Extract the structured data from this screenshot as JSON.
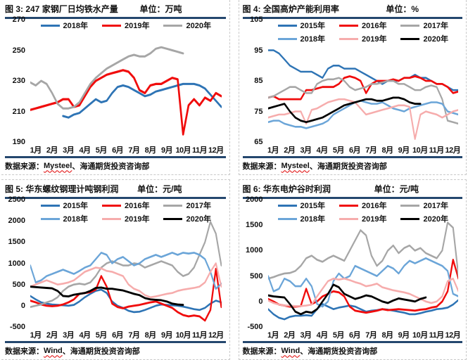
{
  "chart_data": [
    {
      "id": "fig3",
      "type": "line",
      "title": "图 3: 247 家钢厂日均铁水产量",
      "unit": "单位：万吨",
      "source_label": "数据来源：",
      "source_name": "Mysteel",
      "source_rest": "、海通期货投资咨询部",
      "ylim": [
        190,
        270
      ],
      "y_ticks": [
        270,
        250,
        230,
        210,
        190
      ],
      "x_labels": [
        "1月",
        "2月",
        "3月",
        "4月",
        "5月",
        "6月",
        "7月",
        "8月",
        "9月",
        "10月",
        "11月",
        "12月"
      ],
      "legend_rows": 1,
      "grid": false,
      "legend_position": "top",
      "series": [
        {
          "name": "2018年",
          "color": "#2E74B5",
          "width": 2.6,
          "values": [
            null,
            null,
            null,
            null,
            null,
            null,
            207,
            206,
            208,
            209,
            212,
            215,
            218,
            216,
            217,
            222,
            226,
            227,
            226,
            224,
            222,
            220,
            221,
            223,
            224,
            225,
            226,
            227,
            228,
            228,
            228,
            227,
            225,
            221,
            217,
            213
          ]
        },
        {
          "name": "2019年",
          "color": "#F00C0C",
          "width": 2.8,
          "values": [
            211,
            212,
            213,
            214,
            215,
            216,
            218,
            218,
            213,
            214,
            220,
            226,
            230,
            232,
            234,
            235,
            236,
            237,
            236,
            232,
            224,
            222,
            227,
            228,
            228,
            230,
            232,
            231,
            195,
            214,
            218,
            214,
            219,
            217,
            222,
            220
          ]
        },
        {
          "name": "2020年",
          "color": "#A6A6A6",
          "width": 2.6,
          "values": [
            229,
            227,
            230,
            228,
            222,
            215,
            212,
            212,
            213,
            216,
            222,
            228,
            232,
            235,
            238,
            240,
            242,
            244,
            246,
            247,
            246,
            246,
            248,
            251,
            252,
            251,
            250,
            249,
            248,
            null,
            null,
            null,
            null,
            null,
            null,
            null
          ]
        }
      ]
    },
    {
      "id": "fig4",
      "type": "line",
      "title": "图 4: 全国高炉产能利用率",
      "unit": "单位：%",
      "source_label": "数据来源：",
      "source_name": "Mysteel",
      "source_rest": "、海通期货投资咨询部",
      "ylim": [
        65,
        105
      ],
      "y_ticks": [
        105,
        95,
        85,
        75,
        65
      ],
      "x_labels": [
        "1月",
        "2月",
        "3月",
        "4月",
        "5月",
        "6月",
        "7月",
        "8月",
        "9月",
        "10月",
        "11月",
        "12月"
      ],
      "legend_rows": 2,
      "grid": false,
      "legend_position": "top",
      "series": [
        {
          "name": "2015年",
          "color": "#2E74B5",
          "width": 2.2,
          "values": [
            95,
            95,
            94,
            92,
            90,
            89,
            88,
            88,
            88,
            87,
            86,
            89,
            90,
            90,
            89,
            89,
            89,
            88,
            87,
            86,
            85,
            84,
            85,
            85,
            85,
            86,
            86,
            87,
            86,
            86,
            85,
            84,
            84,
            83,
            82,
            82
          ]
        },
        {
          "name": "2016年",
          "color": "#F00C0C",
          "width": 2.4,
          "values": [
            79.5,
            80,
            79,
            79,
            79,
            79,
            79,
            82,
            82,
            82.5,
            83,
            83,
            83,
            84,
            86,
            86.5,
            86,
            85,
            81,
            84,
            85,
            85,
            85,
            85.5,
            85,
            86,
            86,
            86.5,
            86,
            85,
            85,
            84,
            84,
            83,
            81,
            81.5
          ]
        },
        {
          "name": "2017年",
          "color": "#A6A6A6",
          "width": 2.2,
          "values": [
            79.5,
            80,
            81,
            82,
            83,
            83,
            82,
            81,
            81,
            84,
            85,
            85.5,
            85.5,
            86,
            85,
            83,
            82,
            82.5,
            83,
            84,
            84,
            84.5,
            85,
            85,
            84,
            84,
            83,
            82,
            82,
            83,
            83.5,
            83,
            79,
            72,
            71.5,
            71
          ]
        },
        {
          "name": "2018年",
          "color": "#6BA5D8",
          "width": 2.2,
          "values": [
            71.5,
            72,
            72,
            71,
            70.5,
            70,
            70,
            69.5,
            70,
            70.5,
            71,
            72,
            74,
            75,
            76,
            77,
            78,
            78.5,
            78,
            77.5,
            77.5,
            78,
            77,
            76,
            75.5,
            75,
            76,
            76.5,
            77,
            77.5,
            78,
            78,
            77.5,
            75,
            74.5,
            74
          ]
        },
        {
          "name": "2019年",
          "color": "#F6ACAC",
          "width": 2.2,
          "values": [
            73,
            73.5,
            74,
            74,
            74.5,
            75,
            75,
            71,
            75.5,
            76,
            77,
            78,
            78.5,
            79,
            79,
            78.5,
            78,
            76,
            74,
            74.5,
            75,
            75.5,
            76,
            76.5,
            77,
            77,
            76.5,
            66,
            74,
            75,
            74.5,
            74,
            73,
            74,
            75,
            75.5
          ]
        },
        {
          "name": "2020年",
          "color": "#000000",
          "width": 2.4,
          "values": [
            76,
            76.5,
            77,
            77.5,
            75,
            73,
            72,
            71.5,
            72,
            72.5,
            73,
            74,
            75,
            76,
            77,
            77.5,
            78,
            78.5,
            79,
            79,
            78.5,
            78.5,
            79,
            79.5,
            79.5,
            79,
            78,
            77.5,
            77.5,
            null,
            null,
            null,
            null,
            null,
            null,
            null
          ]
        }
      ]
    },
    {
      "id": "fig5",
      "type": "line",
      "title": "图 5: 华东螺纹钢理计吨钢利润",
      "unit": "单位：元/吨",
      "source_label": "数据来源：",
      "source_name": "Wind",
      "source_rest": "、海通期货投资咨询部",
      "ylim": [
        -500,
        2500
      ],
      "y_ticks": [
        2500,
        2000,
        1500,
        1000,
        500,
        0,
        -500
      ],
      "x_labels": [
        "1月",
        "2月",
        "3月",
        "4月",
        "5月",
        "6月",
        "7月",
        "8月",
        "9月",
        "10月",
        "11月",
        "12月"
      ],
      "legend_rows": 2,
      "grid": false,
      "legend_position": "top",
      "series": [
        {
          "name": "2015年",
          "color": "#2E74B5",
          "width": 2.2,
          "values": [
            230,
            150,
            80,
            50,
            30,
            20,
            10,
            0,
            20,
            100,
            200,
            280,
            350,
            380,
            300,
            100,
            0,
            -50,
            -120,
            -150,
            -140,
            -100,
            -50,
            0,
            30,
            20,
            10,
            0,
            -20,
            -50,
            -80,
            -100,
            -50,
            50,
            120,
            80
          ]
        },
        {
          "name": "2016年",
          "color": "#F00C0C",
          "width": 2.4,
          "values": [
            120,
            80,
            30,
            0,
            -10,
            0,
            30,
            80,
            150,
            280,
            300,
            320,
            380,
            700,
            450,
            50,
            -30,
            -60,
            -20,
            0,
            20,
            50,
            80,
            100,
            50,
            0,
            -50,
            -150,
            -220,
            -250,
            -230,
            -250,
            -350,
            -100,
            870,
            -30
          ]
        },
        {
          "name": "2017年",
          "color": "#A6A6A6",
          "width": 2.2,
          "values": [
            -30,
            0,
            30,
            80,
            120,
            200,
            350,
            450,
            500,
            520,
            500,
            550,
            700,
            900,
            1000,
            1050,
            1000,
            950,
            950,
            1000,
            980,
            900,
            950,
            1000,
            1050,
            1000,
            950,
            800,
            700,
            750,
            900,
            1200,
            1500,
            1980,
            1700,
            950
          ]
        },
        {
          "name": "2018年",
          "color": "#6BA5D8",
          "width": 2.2,
          "values": [
            950,
            550,
            600,
            700,
            750,
            800,
            850,
            800,
            750,
            820,
            900,
            950,
            1100,
            1250,
            1200,
            1000,
            1100,
            1150,
            1050,
            950,
            1000,
            1100,
            1150,
            1200,
            1150,
            1200,
            1250,
            1200,
            1250,
            1230,
            1250,
            1200,
            1100,
            800,
            400,
            520
          ]
        },
        {
          "name": "2019年",
          "color": "#F6ACAC",
          "width": 2.2,
          "values": [
            450,
            500,
            550,
            600,
            550,
            500,
            520,
            550,
            600,
            700,
            800,
            850,
            900,
            880,
            820,
            800,
            750,
            700,
            500,
            400,
            350,
            250,
            200,
            220,
            250,
            280,
            300,
            350,
            380,
            400,
            420,
            450,
            550,
            800,
            1000,
            450
          ]
        },
        {
          "name": "2020年",
          "color": "#000000",
          "width": 2.4,
          "values": [
            450,
            440,
            430,
            420,
            410,
            350,
            230,
            220,
            260,
            280,
            300,
            350,
            420,
            430,
            400,
            400,
            380,
            360,
            320,
            280,
            250,
            180,
            150,
            140,
            130,
            100,
            50,
            30,
            20,
            null,
            null,
            null,
            null,
            null,
            null,
            null
          ]
        }
      ]
    },
    {
      "id": "fig6",
      "type": "line",
      "title": "图 6: 华东电炉谷时利润",
      "unit": "单位：元/吨",
      "source_label": "数据来源：",
      "source_name": "Wind",
      "source_rest": "、海通期货投资咨询部",
      "ylim": [
        -500,
        2000
      ],
      "y_ticks": [
        2000,
        1500,
        1000,
        500,
        0,
        -500
      ],
      "x_labels": [
        "1月",
        "2月",
        "3月",
        "4月",
        "5月",
        "6月",
        "7月",
        "8月",
        "9月",
        "10月",
        "11月",
        "12月"
      ],
      "legend_rows": 2,
      "grid": false,
      "legend_position": "top",
      "series": [
        {
          "name": "2015年",
          "color": "#2E74B5",
          "width": 2.2,
          "values": [
            -150,
            -250,
            -320,
            -350,
            -300,
            -280,
            -280,
            -270,
            -280,
            -150,
            -50,
            -100,
            -150,
            -120,
            -100,
            -80,
            -100,
            -150,
            -200,
            -180,
            -170,
            -150,
            -160,
            -180,
            -200,
            -220,
            -250,
            -250,
            -230,
            -200,
            -180,
            -150,
            -140,
            -120,
            -60,
            30
          ]
        },
        {
          "name": "2016年",
          "color": "#F00C0C",
          "width": 2.4,
          "values": [
            50,
            0,
            -60,
            -80,
            -100,
            -100,
            -90,
            250,
            -50,
            0,
            100,
            150,
            200,
            180,
            100,
            -100,
            -180,
            -200,
            -220,
            -200,
            -180,
            -150,
            -170,
            -160,
            -150,
            -160,
            -170,
            -180,
            -160,
            -150,
            -120,
            -100,
            0,
            200,
            820,
            450
          ]
        },
        {
          "name": "2017年",
          "color": "#A6A6A6",
          "width": 2.2,
          "values": [
            450,
            480,
            520,
            550,
            560,
            600,
            700,
            850,
            900,
            820,
            780,
            850,
            900,
            850,
            800,
            1000,
            1200,
            1400,
            1300,
            900,
            700,
            800,
            1000,
            1100,
            950,
            1050,
            1100,
            1000,
            1050,
            950,
            900,
            850,
            1000,
            1550,
            1450,
            500
          ]
        },
        {
          "name": "2018年",
          "color": "#6BA5D8",
          "width": 2.2,
          "values": [
            500,
            200,
            250,
            450,
            400,
            300,
            300,
            450,
            300,
            -50,
            -100,
            0,
            400,
            550,
            450,
            500,
            700,
            650,
            600,
            550,
            500,
            600,
            700,
            650,
            550,
            700,
            800,
            750,
            800,
            850,
            800,
            750,
            700,
            600,
            150,
            100
          ]
        },
        {
          "name": "2019年",
          "color": "#F6ACAC",
          "width": 2.2,
          "values": [
            20,
            -30,
            -60,
            -80,
            -80,
            -90,
            -90,
            -80,
            -60,
            100,
            250,
            400,
            450,
            430,
            450,
            420,
            380,
            350,
            300,
            320,
            350,
            280,
            250,
            220,
            200,
            180,
            150,
            100,
            50,
            0,
            -30,
            0,
            100,
            400,
            450,
            200
          ]
        },
        {
          "name": "2020年",
          "color": "#000000",
          "width": 2.4,
          "values": [
            120,
            100,
            90,
            80,
            -50,
            -200,
            -250,
            -200,
            -220,
            -150,
            0,
            150,
            330,
            280,
            150,
            100,
            50,
            80,
            120,
            100,
            50,
            0,
            -30,
            20,
            60,
            40,
            20,
            0,
            50,
            80,
            null,
            null,
            null,
            null,
            null,
            null
          ]
        }
      ]
    }
  ],
  "colors": {
    "divider_rule": "#24476E",
    "cell_border": "#c9c9c9",
    "spellcheck_wavy": "#e00000"
  }
}
